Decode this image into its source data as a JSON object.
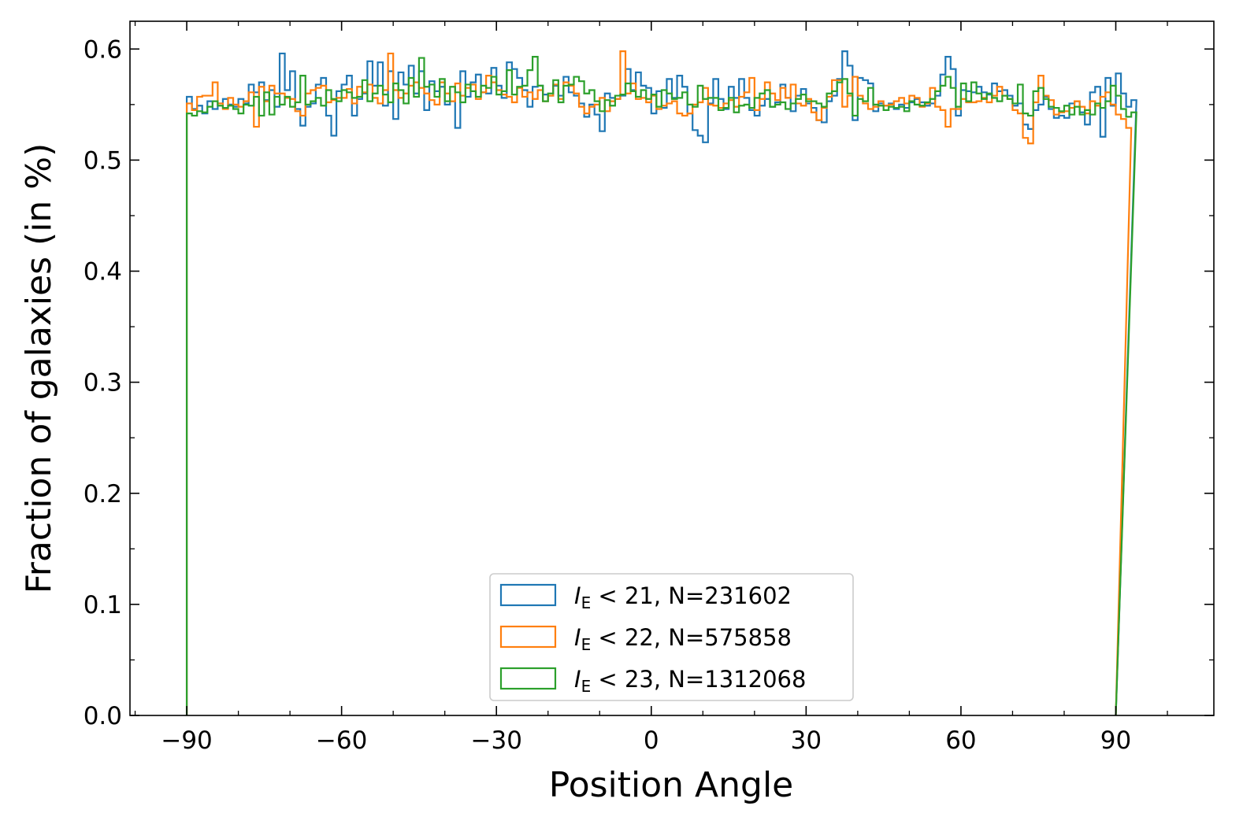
{
  "chart_data": {
    "type": "histogram-step",
    "xlabel": "Position Angle",
    "ylabel": "Fraction of galaxies (in %)",
    "xlim": [
      -101,
      109
    ],
    "ylim": [
      0.0,
      0.625
    ],
    "xticks": [
      -90,
      -60,
      -30,
      0,
      30,
      60,
      90
    ],
    "xtick_labels": [
      "−90",
      "−60",
      "−30",
      "0",
      "30",
      "60",
      "90"
    ],
    "yticks": [
      0.0,
      0.1,
      0.2,
      0.3,
      0.4,
      0.5,
      0.6
    ],
    "ytick_labels": [
      "0.0",
      "0.1",
      "0.2",
      "0.3",
      "0.4",
      "0.5",
      "0.6"
    ],
    "legend_position": "lower-center",
    "bins": {
      "start": -90,
      "end": 90,
      "count": 180
    },
    "series": [
      {
        "name": "I_E < 21, N=231602",
        "label_symbol": "I",
        "label_subscript": "E",
        "label_rest": " < 21, N=231602",
        "color": "#1f77b4",
        "values": [
          0.557,
          0.546,
          0.549,
          0.542,
          0.553,
          0.546,
          0.551,
          0.555,
          0.55,
          0.548,
          0.555,
          0.551,
          0.568,
          0.561,
          0.57,
          0.554,
          0.563,
          0.548,
          0.596,
          0.563,
          0.58,
          0.546,
          0.531,
          0.548,
          0.551,
          0.568,
          0.574,
          0.54,
          0.522,
          0.562,
          0.568,
          0.576,
          0.54,
          0.555,
          0.56,
          0.589,
          0.567,
          0.588,
          0.549,
          0.58,
          0.537,
          0.579,
          0.568,
          0.585,
          0.56,
          0.58,
          0.545,
          0.571,
          0.562,
          0.566,
          0.55,
          0.553,
          0.529,
          0.58,
          0.557,
          0.57,
          0.577,
          0.561,
          0.56,
          0.583,
          0.567,
          0.556,
          0.588,
          0.582,
          0.574,
          0.563,
          0.548,
          0.566,
          0.567,
          0.559,
          0.558,
          0.567,
          0.558,
          0.575,
          0.561,
          0.558,
          0.551,
          0.539,
          0.55,
          0.541,
          0.526,
          0.56,
          0.556,
          0.555,
          0.558,
          0.582,
          0.563,
          0.579,
          0.567,
          0.565,
          0.542,
          0.562,
          0.547,
          0.573,
          0.556,
          0.576,
          0.566,
          0.542,
          0.527,
          0.522,
          0.516,
          0.551,
          0.573,
          0.555,
          0.546,
          0.566,
          0.556,
          0.573,
          0.556,
          0.545,
          0.54,
          0.549,
          0.555,
          0.548,
          0.552,
          0.568,
          0.556,
          0.544,
          0.558,
          0.564,
          0.551,
          0.547,
          0.536,
          0.534,
          0.553,
          0.558,
          0.573,
          0.598,
          0.585,
          0.536,
          0.574,
          0.572,
          0.569,
          0.544,
          0.551,
          0.549,
          0.551,
          0.546,
          0.55,
          0.547,
          0.552,
          0.555,
          0.552,
          0.549,
          0.551,
          0.558,
          0.577,
          0.593,
          0.582,
          0.54,
          0.563,
          0.562,
          0.561,
          0.566,
          0.561,
          0.559,
          0.569,
          0.562,
          0.563,
          0.558,
          0.549,
          0.551,
          0.532,
          0.528,
          0.545,
          0.55,
          0.557,
          0.546,
          0.538,
          0.54,
          0.538,
          0.551,
          0.553,
          0.543,
          0.532,
          0.561,
          0.566,
          0.521,
          0.574,
          0.549,
          0.578,
          0.56,
          0.548,
          0.554
        ]
      },
      {
        "name": "I_E < 22, N=575858",
        "label_symbol": "I",
        "label_subscript": "E",
        "label_rest": " < 22, N=575858",
        "color": "#ff7f0e",
        "values": [
          0.551,
          0.545,
          0.557,
          0.558,
          0.558,
          0.57,
          0.551,
          0.546,
          0.556,
          0.55,
          0.548,
          0.553,
          0.561,
          0.53,
          0.566,
          0.553,
          0.567,
          0.56,
          0.56,
          0.556,
          0.555,
          0.544,
          0.54,
          0.56,
          0.563,
          0.565,
          0.567,
          0.552,
          0.554,
          0.556,
          0.556,
          0.564,
          0.551,
          0.566,
          0.561,
          0.568,
          0.556,
          0.551,
          0.563,
          0.596,
          0.563,
          0.556,
          0.56,
          0.567,
          0.57,
          0.565,
          0.56,
          0.554,
          0.55,
          0.57,
          0.56,
          0.553,
          0.569,
          0.558,
          0.565,
          0.568,
          0.555,
          0.561,
          0.576,
          0.57,
          0.563,
          0.559,
          0.557,
          0.552,
          0.565,
          0.557,
          0.561,
          0.555,
          0.563,
          0.553,
          0.558,
          0.568,
          0.555,
          0.57,
          0.567,
          0.56,
          0.548,
          0.542,
          0.548,
          0.55,
          0.556,
          0.544,
          0.553,
          0.555,
          0.598,
          0.56,
          0.569,
          0.555,
          0.556,
          0.552,
          0.558,
          0.546,
          0.549,
          0.551,
          0.553,
          0.542,
          0.54,
          0.542,
          0.55,
          0.552,
          0.565,
          0.55,
          0.549,
          0.547,
          0.551,
          0.554,
          0.548,
          0.557,
          0.561,
          0.574,
          0.545,
          0.555,
          0.57,
          0.56,
          0.554,
          0.565,
          0.556,
          0.568,
          0.551,
          0.549,
          0.555,
          0.543,
          0.536,
          0.547,
          0.557,
          0.572,
          0.572,
          0.548,
          0.558,
          0.575,
          0.558,
          0.551,
          0.546,
          0.548,
          0.553,
          0.549,
          0.55,
          0.553,
          0.556,
          0.551,
          0.558,
          0.556,
          0.548,
          0.551,
          0.565,
          0.548,
          0.545,
          0.53,
          0.546,
          0.546,
          0.555,
          0.552,
          0.552,
          0.553,
          0.556,
          0.552,
          0.558,
          0.566,
          0.558,
          0.555,
          0.545,
          0.542,
          0.52,
          0.515,
          0.552,
          0.576,
          0.558,
          0.554,
          0.541,
          0.543,
          0.544,
          0.547,
          0.553,
          0.548,
          0.542,
          0.553,
          0.549,
          0.557,
          0.561,
          0.55,
          0.541,
          0.537,
          0.529
        ]
      },
      {
        "name": "I_E < 23, N=1312068",
        "label_symbol": "I",
        "label_subscript": "E",
        "label_rest": " < 23, N=1312068",
        "color": "#2ca02c",
        "values": [
          0.542,
          0.54,
          0.544,
          0.543,
          0.548,
          0.553,
          0.549,
          0.547,
          0.549,
          0.546,
          0.542,
          0.55,
          0.549,
          0.557,
          0.54,
          0.561,
          0.541,
          0.557,
          0.55,
          0.557,
          0.548,
          0.552,
          0.576,
          0.55,
          0.553,
          0.556,
          0.549,
          0.563,
          0.555,
          0.553,
          0.563,
          0.561,
          0.556,
          0.557,
          0.572,
          0.553,
          0.56,
          0.567,
          0.559,
          0.552,
          0.569,
          0.563,
          0.551,
          0.574,
          0.557,
          0.592,
          0.566,
          0.568,
          0.557,
          0.573,
          0.553,
          0.566,
          0.561,
          0.552,
          0.568,
          0.562,
          0.557,
          0.567,
          0.565,
          0.575,
          0.559,
          0.562,
          0.581,
          0.559,
          0.566,
          0.567,
          0.581,
          0.593,
          0.567,
          0.553,
          0.56,
          0.572,
          0.552,
          0.567,
          0.568,
          0.575,
          0.571,
          0.56,
          0.563,
          0.553,
          0.544,
          0.554,
          0.549,
          0.558,
          0.559,
          0.569,
          0.562,
          0.557,
          0.563,
          0.555,
          0.559,
          0.548,
          0.563,
          0.56,
          0.555,
          0.556,
          0.561,
          0.55,
          0.548,
          0.567,
          0.555,
          0.556,
          0.556,
          0.545,
          0.547,
          0.556,
          0.543,
          0.549,
          0.55,
          0.547,
          0.556,
          0.56,
          0.563,
          0.548,
          0.55,
          0.552,
          0.546,
          0.551,
          0.555,
          0.559,
          0.553,
          0.553,
          0.551,
          0.548,
          0.56,
          0.562,
          0.57,
          0.573,
          0.56,
          0.54,
          0.555,
          0.553,
          0.565,
          0.55,
          0.549,
          0.545,
          0.548,
          0.547,
          0.548,
          0.544,
          0.553,
          0.55,
          0.549,
          0.552,
          0.555,
          0.562,
          0.567,
          0.575,
          0.565,
          0.548,
          0.569,
          0.553,
          0.57,
          0.56,
          0.555,
          0.56,
          0.556,
          0.553,
          0.558,
          0.555,
          0.551,
          0.568,
          0.542,
          0.54,
          0.562,
          0.565,
          0.555,
          0.548,
          0.547,
          0.544,
          0.549,
          0.541,
          0.548,
          0.541,
          0.545,
          0.541,
          0.551,
          0.547,
          0.553,
          0.567,
          0.558,
          0.546,
          0.539,
          0.543
        ]
      }
    ]
  }
}
